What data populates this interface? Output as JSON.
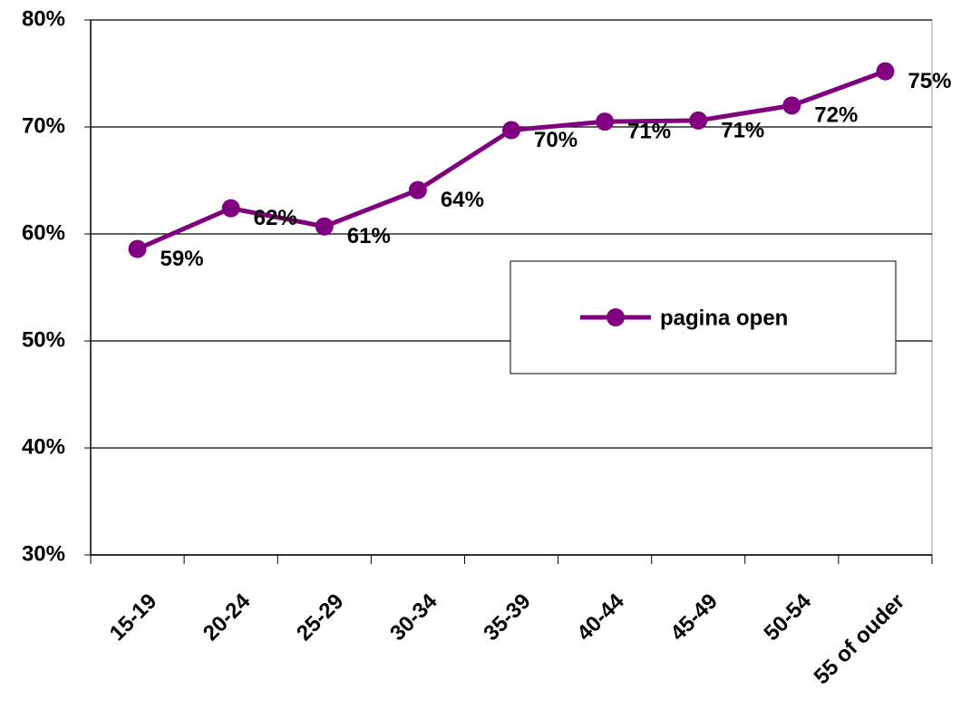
{
  "chart_data": {
    "type": "line",
    "categories": [
      "15-19",
      "20-24",
      "25-29",
      "30-34",
      "35-39",
      "40-44",
      "45-49",
      "50-54",
      "55 of ouder"
    ],
    "series": [
      {
        "name": "pagina open",
        "color": "#800080",
        "values": [
          58.6,
          62.4,
          60.7,
          64.1,
          69.7,
          70.5,
          70.6,
          72.0,
          75.2
        ],
        "value_labels": [
          "59%",
          "62%",
          "61%",
          "64%",
          "70%",
          "71%",
          "71%",
          "72%",
          "75%"
        ]
      }
    ],
    "ylim": [
      30,
      80
    ],
    "yticks": [
      {
        "value": 30,
        "label": "30%"
      },
      {
        "value": 40,
        "label": "40%"
      },
      {
        "value": 50,
        "label": "50%"
      },
      {
        "value": 60,
        "label": "60%"
      },
      {
        "value": 70,
        "label": "70%"
      },
      {
        "value": 80,
        "label": "80%"
      }
    ],
    "grid": true,
    "legend": "right"
  }
}
